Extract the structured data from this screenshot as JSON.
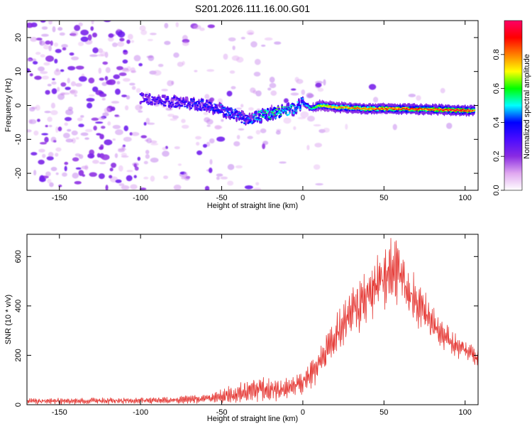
{
  "figure_title": "S201.2026.111.16.00.G01",
  "colors": {
    "snr_line": "#e53935",
    "frame": "#000000"
  },
  "chart_data": [
    {
      "type": "heatmap",
      "name": "spectrogram",
      "xlabel": "Height of straight line (km)",
      "ylabel": "Frequency (Hz)",
      "xlim": [
        -170,
        108
      ],
      "ylim": [
        -25,
        25
      ],
      "xticks": [
        -150,
        -100,
        -50,
        0,
        50,
        100
      ],
      "yticks": [
        -20,
        -10,
        0,
        10,
        20
      ],
      "colorbar": {
        "label": "Normalized spectral amplitude",
        "range": [
          0,
          1
        ],
        "ticks": [
          "0.0",
          "0.2",
          "0.4",
          "0.6",
          "0.8"
        ],
        "tick_values": [
          0,
          0.2,
          0.4,
          0.6,
          0.8
        ],
        "colormap": [
          "#ffffff",
          "#e0a8f0",
          "#8a2be2",
          "#4b0cff",
          "#0000ff",
          "#00ffff",
          "#00ff00",
          "#ffff00",
          "#ff7f00",
          "#ff0000",
          "#ff0066"
        ]
      },
      "ridge": {
        "description_points_x": [
          -100,
          -80,
          -60,
          -45,
          -35,
          -25,
          -15,
          -5,
          0,
          5,
          10,
          20,
          40,
          60,
          80,
          100,
          106
        ],
        "frequency_y": [
          2,
          1,
          0,
          -2,
          -4,
          -3,
          -2,
          -1,
          1,
          -1,
          0,
          -0.5,
          -1,
          -1,
          -1.2,
          -1.5,
          -1.5
        ],
        "peak_amplitude": [
          0.35,
          0.4,
          0.45,
          0.5,
          0.45,
          0.6,
          0.65,
          0.55,
          0.5,
          0.6,
          0.75,
          0.85,
          0.9,
          0.95,
          0.95,
          1.0,
          0.9
        ]
      }
    },
    {
      "type": "line",
      "name": "snr",
      "xlabel": "Height of straight line (km)",
      "ylabel": "SNR (10 * v/v)",
      "xlim": [
        -170,
        108
      ],
      "ylim": [
        0,
        690
      ],
      "xticks": [
        -150,
        -100,
        -50,
        0,
        50,
        100
      ],
      "yticks": [
        0,
        200,
        400,
        600
      ],
      "envelope": {
        "x": [
          -170,
          -120,
          -80,
          -60,
          -50,
          -40,
          -30,
          -20,
          -10,
          0,
          10,
          20,
          30,
          40,
          50,
          55,
          60,
          70,
          80,
          90,
          100,
          108
        ],
        "center": [
          15,
          15,
          18,
          25,
          35,
          45,
          65,
          60,
          65,
          90,
          160,
          270,
          370,
          440,
          510,
          550,
          520,
          420,
          320,
          260,
          220,
          190
        ],
        "spread": [
          12,
          12,
          12,
          18,
          25,
          40,
          50,
          45,
          40,
          45,
          60,
          80,
          100,
          110,
          110,
          120,
          110,
          90,
          70,
          50,
          40,
          35
        ]
      }
    }
  ]
}
